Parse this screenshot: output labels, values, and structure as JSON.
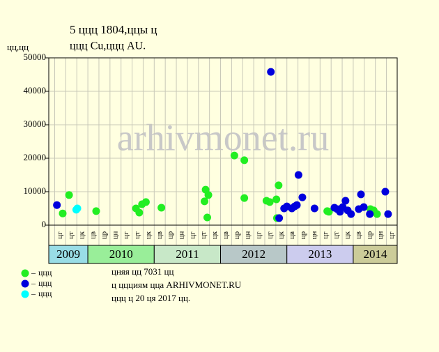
{
  "chart_data": {
    "type": "scatter",
    "title": "5 ццц 1804,ццы ц",
    "subtitle": "ццц Cu,ццц AU.",
    "y_label": "цц,цц",
    "watermark": "arhivmonet.ru",
    "xlim": [
      4.93,
      67.95
    ],
    "xticks": [
      6,
      8,
      10,
      12,
      14,
      16,
      18,
      20,
      22,
      24,
      26,
      28,
      30,
      32,
      34,
      36,
      38,
      40,
      42,
      44,
      46,
      48,
      50,
      52,
      54,
      56,
      58,
      60,
      62,
      64,
      66
    ],
    "month_labels": [
      "цг",
      "цт",
      "цк",
      "цв",
      "цр",
      "цн",
      "цг",
      "цт",
      "цк",
      "цв",
      "цр",
      "цн",
      "цг",
      "цт",
      "цк",
      "цв",
      "цр",
      "цн",
      "цг",
      "цт",
      "цк",
      "цв",
      "цр",
      "цн",
      "цг",
      "цт",
      "цк",
      "цв",
      "цр",
      "цн",
      "цг"
    ],
    "year_bands": [
      {
        "label": "2009",
        "range": [
          4.93,
          12
        ],
        "color": "#99dde6"
      },
      {
        "label": "2010",
        "range": [
          12,
          24
        ],
        "color": "#99ee99"
      },
      {
        "label": "2011",
        "range": [
          24,
          36
        ],
        "color": "#c8e8c8"
      },
      {
        "label": "2012",
        "range": [
          36,
          48
        ],
        "color": "#b8c8c8"
      },
      {
        "label": "2013",
        "range": [
          48,
          60
        ],
        "color": "#ccccee"
      },
      {
        "label": "2014",
        "range": [
          60,
          67.95
        ],
        "color": "#cccc99"
      }
    ],
    "ylim": [
      0,
      50000
    ],
    "yticks": [
      0,
      10000,
      20000,
      30000,
      40000,
      50000
    ],
    "grid": true,
    "series": [
      {
        "name": "ццц",
        "color": "#22ee22",
        "x": [
          8.6,
          7.45,
          13.5,
          20.7,
          21.3,
          21.8,
          22.5,
          25.3,
          33.3,
          33.8,
          33.1,
          33.6,
          38.5,
          40.3,
          40.3,
          44.3,
          44.9,
          46.1,
          46.5,
          46.2,
          55.3,
          55.6,
          63.1,
          63.7,
          64.3
        ],
        "values": [
          9000,
          3500,
          4200,
          5000,
          3750,
          6250,
          6900,
          5200,
          10600,
          9000,
          7100,
          2300,
          20800,
          19400,
          8100,
          7300,
          6900,
          7700,
          11900,
          2100,
          4200,
          4000,
          4800,
          4400,
          3300
        ]
      },
      {
        "name": "ццц",
        "color": "#0000dd",
        "x": [
          6.4,
          45.1,
          46.6,
          47.5,
          48.0,
          48.9,
          49.4,
          49.8,
          50.1,
          50.8,
          53.0,
          56.6,
          57.1,
          57.6,
          58.1,
          58.6,
          59.0,
          59.6,
          61.0,
          61.4,
          61.9,
          63.0,
          65.8,
          66.3
        ],
        "values": [
          6000,
          45800,
          2100,
          5000,
          5600,
          5000,
          5600,
          6000,
          15000,
          8300,
          5000,
          5200,
          4800,
          4000,
          5400,
          7300,
          4400,
          3300,
          4800,
          9200,
          5400,
          3300,
          10000,
          3300
        ]
      },
      {
        "name": "ццц",
        "color": "#00ffff",
        "x": [
          9.9,
          10.1
        ],
        "values": [
          4600,
          5000
        ]
      }
    ],
    "notes": [
      "цняя цц 7031 цц",
      "ц ццциям цца ARHIVMONET.RU",
      "ццц ц 20 ця 2017 цц."
    ]
  }
}
